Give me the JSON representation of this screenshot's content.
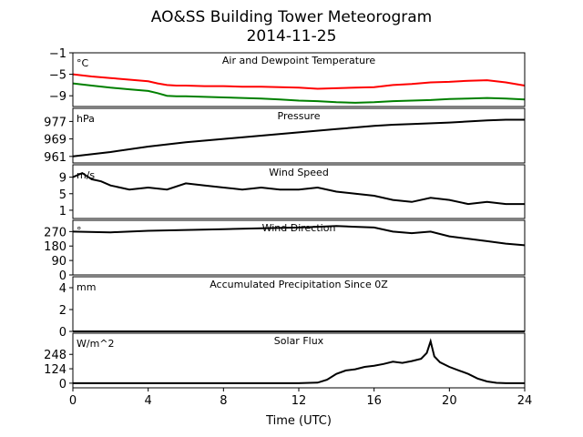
{
  "title": "AO&SS Building Tower Meteorogram",
  "subtitle": "2014-11-25",
  "chart_data": {
    "type": "line",
    "xlabel": "Time (UTC)",
    "xlim": [
      0,
      24
    ],
    "xticks": [
      0,
      4,
      8,
      12,
      16,
      20,
      24
    ],
    "panels": [
      {
        "id": "temperature",
        "title": "Air and Dewpoint Temperature",
        "unit": "°C",
        "ylim": [
          -11,
          -1
        ],
        "yticks": [
          -1,
          -5,
          -9
        ],
        "series": [
          {
            "color": "#ff0000",
            "x": [
              0,
              1,
              2,
              3,
              4,
              4.5,
              5,
              5.5,
              6,
              7,
              8,
              9,
              10,
              11,
              12,
              13,
              14,
              15,
              16,
              17,
              18,
              19,
              20,
              21,
              22,
              23,
              24
            ],
            "y": [
              -5.0,
              -5.4,
              -5.7,
              -6.0,
              -6.3,
              -6.7,
              -7.0,
              -7.1,
              -7.1,
              -7.2,
              -7.2,
              -7.3,
              -7.3,
              -7.4,
              -7.5,
              -7.7,
              -7.6,
              -7.5,
              -7.4,
              -7.0,
              -6.8,
              -6.5,
              -6.4,
              -6.2,
              -6.1,
              -6.5,
              -7.1
            ]
          },
          {
            "color": "#008000",
            "x": [
              0,
              1,
              2,
              3,
              4,
              4.5,
              5,
              5.5,
              6,
              7,
              8,
              9,
              10,
              11,
              12,
              13,
              14,
              15,
              16,
              17,
              18,
              19,
              20,
              21,
              22,
              23,
              24
            ],
            "y": [
              -6.7,
              -7.1,
              -7.5,
              -7.8,
              -8.1,
              -8.5,
              -9.0,
              -9.1,
              -9.1,
              -9.2,
              -9.3,
              -9.4,
              -9.5,
              -9.7,
              -9.9,
              -10.0,
              -10.2,
              -10.3,
              -10.2,
              -10.0,
              -9.9,
              -9.8,
              -9.6,
              -9.5,
              -9.4,
              -9.5,
              -9.7
            ]
          }
        ]
      },
      {
        "id": "pressure",
        "title": "Pressure",
        "unit": "hPa",
        "ylim": [
          958,
          983
        ],
        "yticks": [
          961,
          969,
          977
        ],
        "series": [
          {
            "color": "#000000",
            "x": [
              0,
              2,
              4,
              6,
              8,
              10,
              12,
              14,
              16,
              17,
              18,
              20,
              22,
              23,
              24
            ],
            "y": [
              961.0,
              963.0,
              965.5,
              967.5,
              969.0,
              970.5,
              972.0,
              973.5,
              975.0,
              975.5,
              975.8,
              976.5,
              977.5,
              977.8,
              977.8
            ]
          }
        ]
      },
      {
        "id": "wind_speed",
        "title": "Wind Speed",
        "unit": "m/s",
        "ylim": [
          -1,
          12
        ],
        "yticks": [
          1,
          5,
          9
        ],
        "series": [
          {
            "color": "#000000",
            "x": [
              0,
              0.5,
              1,
              1.5,
              2,
              3,
              4,
              5,
              6,
              7,
              8,
              9,
              10,
              11,
              12,
              13,
              14,
              15,
              16,
              17,
              18,
              19,
              20,
              21,
              22,
              23,
              24
            ],
            "y": [
              9.0,
              10.0,
              8.5,
              8.0,
              7.0,
              6.0,
              6.5,
              6.0,
              7.5,
              7.0,
              6.5,
              6.0,
              6.5,
              6.0,
              6.0,
              6.5,
              5.5,
              5.0,
              4.5,
              3.5,
              3.0,
              4.0,
              3.5,
              2.5,
              3.0,
              2.5,
              2.5
            ]
          }
        ]
      },
      {
        "id": "wind_direction",
        "title": "Wind Direction",
        "unit": "°",
        "ylim": [
          0,
          340
        ],
        "yticks": [
          0,
          90,
          180,
          270
        ],
        "series": [
          {
            "color": "#000000",
            "x": [
              0,
              2,
              4,
              6,
              8,
              10,
              12,
              13,
              14,
              15,
              16,
              17,
              18,
              19,
              20,
              21,
              22,
              23,
              24
            ],
            "y": [
              270,
              265,
              275,
              280,
              285,
              290,
              295,
              300,
              305,
              300,
              295,
              270,
              260,
              270,
              240,
              225,
              210,
              195,
              185
            ]
          }
        ]
      },
      {
        "id": "precip",
        "title": "Accumulated Precipitation Since 0Z",
        "unit": "mm",
        "ylim": [
          0,
          5
        ],
        "yticks": [
          0,
          2,
          4
        ],
        "series": [
          {
            "color": "#000000",
            "x": [
              0,
              24
            ],
            "y": [
              0,
              0
            ]
          }
        ]
      },
      {
        "id": "solar",
        "title": "Solar Flux",
        "unit": "W/m^2",
        "ylim": [
          -40,
          430
        ],
        "yticks": [
          0,
          124,
          248
        ],
        "series": [
          {
            "color": "#000000",
            "x": [
              0,
              12,
              13,
              13.5,
              14,
              14.5,
              15,
              15.5,
              16,
              16.5,
              17,
              17.5,
              18,
              18.5,
              18.8,
              19,
              19.2,
              19.5,
              20,
              20.5,
              21,
              21.5,
              22,
              22.5,
              23,
              24
            ],
            "y": [
              0,
              0,
              5,
              30,
              80,
              110,
              120,
              140,
              150,
              165,
              185,
              175,
              190,
              210,
              260,
              360,
              230,
              180,
              140,
              110,
              80,
              40,
              15,
              3,
              0,
              0
            ]
          }
        ]
      }
    ]
  }
}
